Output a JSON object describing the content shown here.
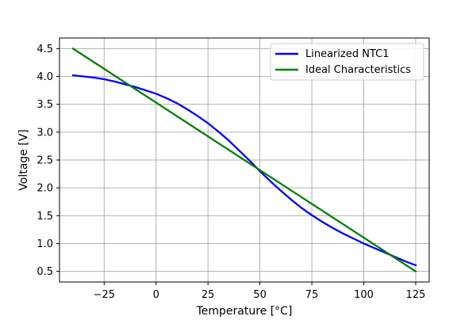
{
  "chart_data": {
    "type": "line",
    "title": "",
    "xlabel": "Temperature [°C]",
    "ylabel": "Voltage [V]",
    "xlim": [
      -46.5,
      131.5
    ],
    "ylim": [
      0.31,
      4.69
    ],
    "xticks": [
      -25,
      0,
      25,
      50,
      75,
      100,
      125
    ],
    "yticks": [
      0.5,
      1.0,
      1.5,
      2.0,
      2.5,
      3.0,
      3.5,
      4.0,
      4.5
    ],
    "xtick_labels": [
      "−25",
      "0",
      "25",
      "50",
      "75",
      "100",
      "125"
    ],
    "ytick_labels": [
      "0.5",
      "1.0",
      "1.5",
      "2.0",
      "2.5",
      "3.0",
      "3.5",
      "4.0",
      "4.5"
    ],
    "grid": true,
    "legend_position": "top-right",
    "series": [
      {
        "name": "Linearized NTC1",
        "color": "#0000ff",
        "x": [
          -40,
          -35,
          -30,
          -25,
          -20,
          -15,
          -10,
          -5,
          0,
          5,
          10,
          15,
          20,
          25,
          30,
          35,
          40,
          45,
          50,
          55,
          60,
          65,
          70,
          75,
          80,
          85,
          90,
          95,
          100,
          105,
          110,
          115,
          120,
          125
        ],
        "y": [
          4.02,
          4.0,
          3.98,
          3.95,
          3.91,
          3.86,
          3.81,
          3.75,
          3.69,
          3.61,
          3.52,
          3.41,
          3.29,
          3.16,
          3.01,
          2.85,
          2.67,
          2.49,
          2.3,
          2.12,
          1.95,
          1.79,
          1.64,
          1.51,
          1.39,
          1.28,
          1.18,
          1.09,
          1.0,
          0.92,
          0.84,
          0.76,
          0.68,
          0.61
        ]
      },
      {
        "name": "Ideal Characteristics",
        "color": "#008000",
        "x": [
          -40,
          125
        ],
        "y": [
          4.5,
          0.5
        ]
      }
    ]
  }
}
